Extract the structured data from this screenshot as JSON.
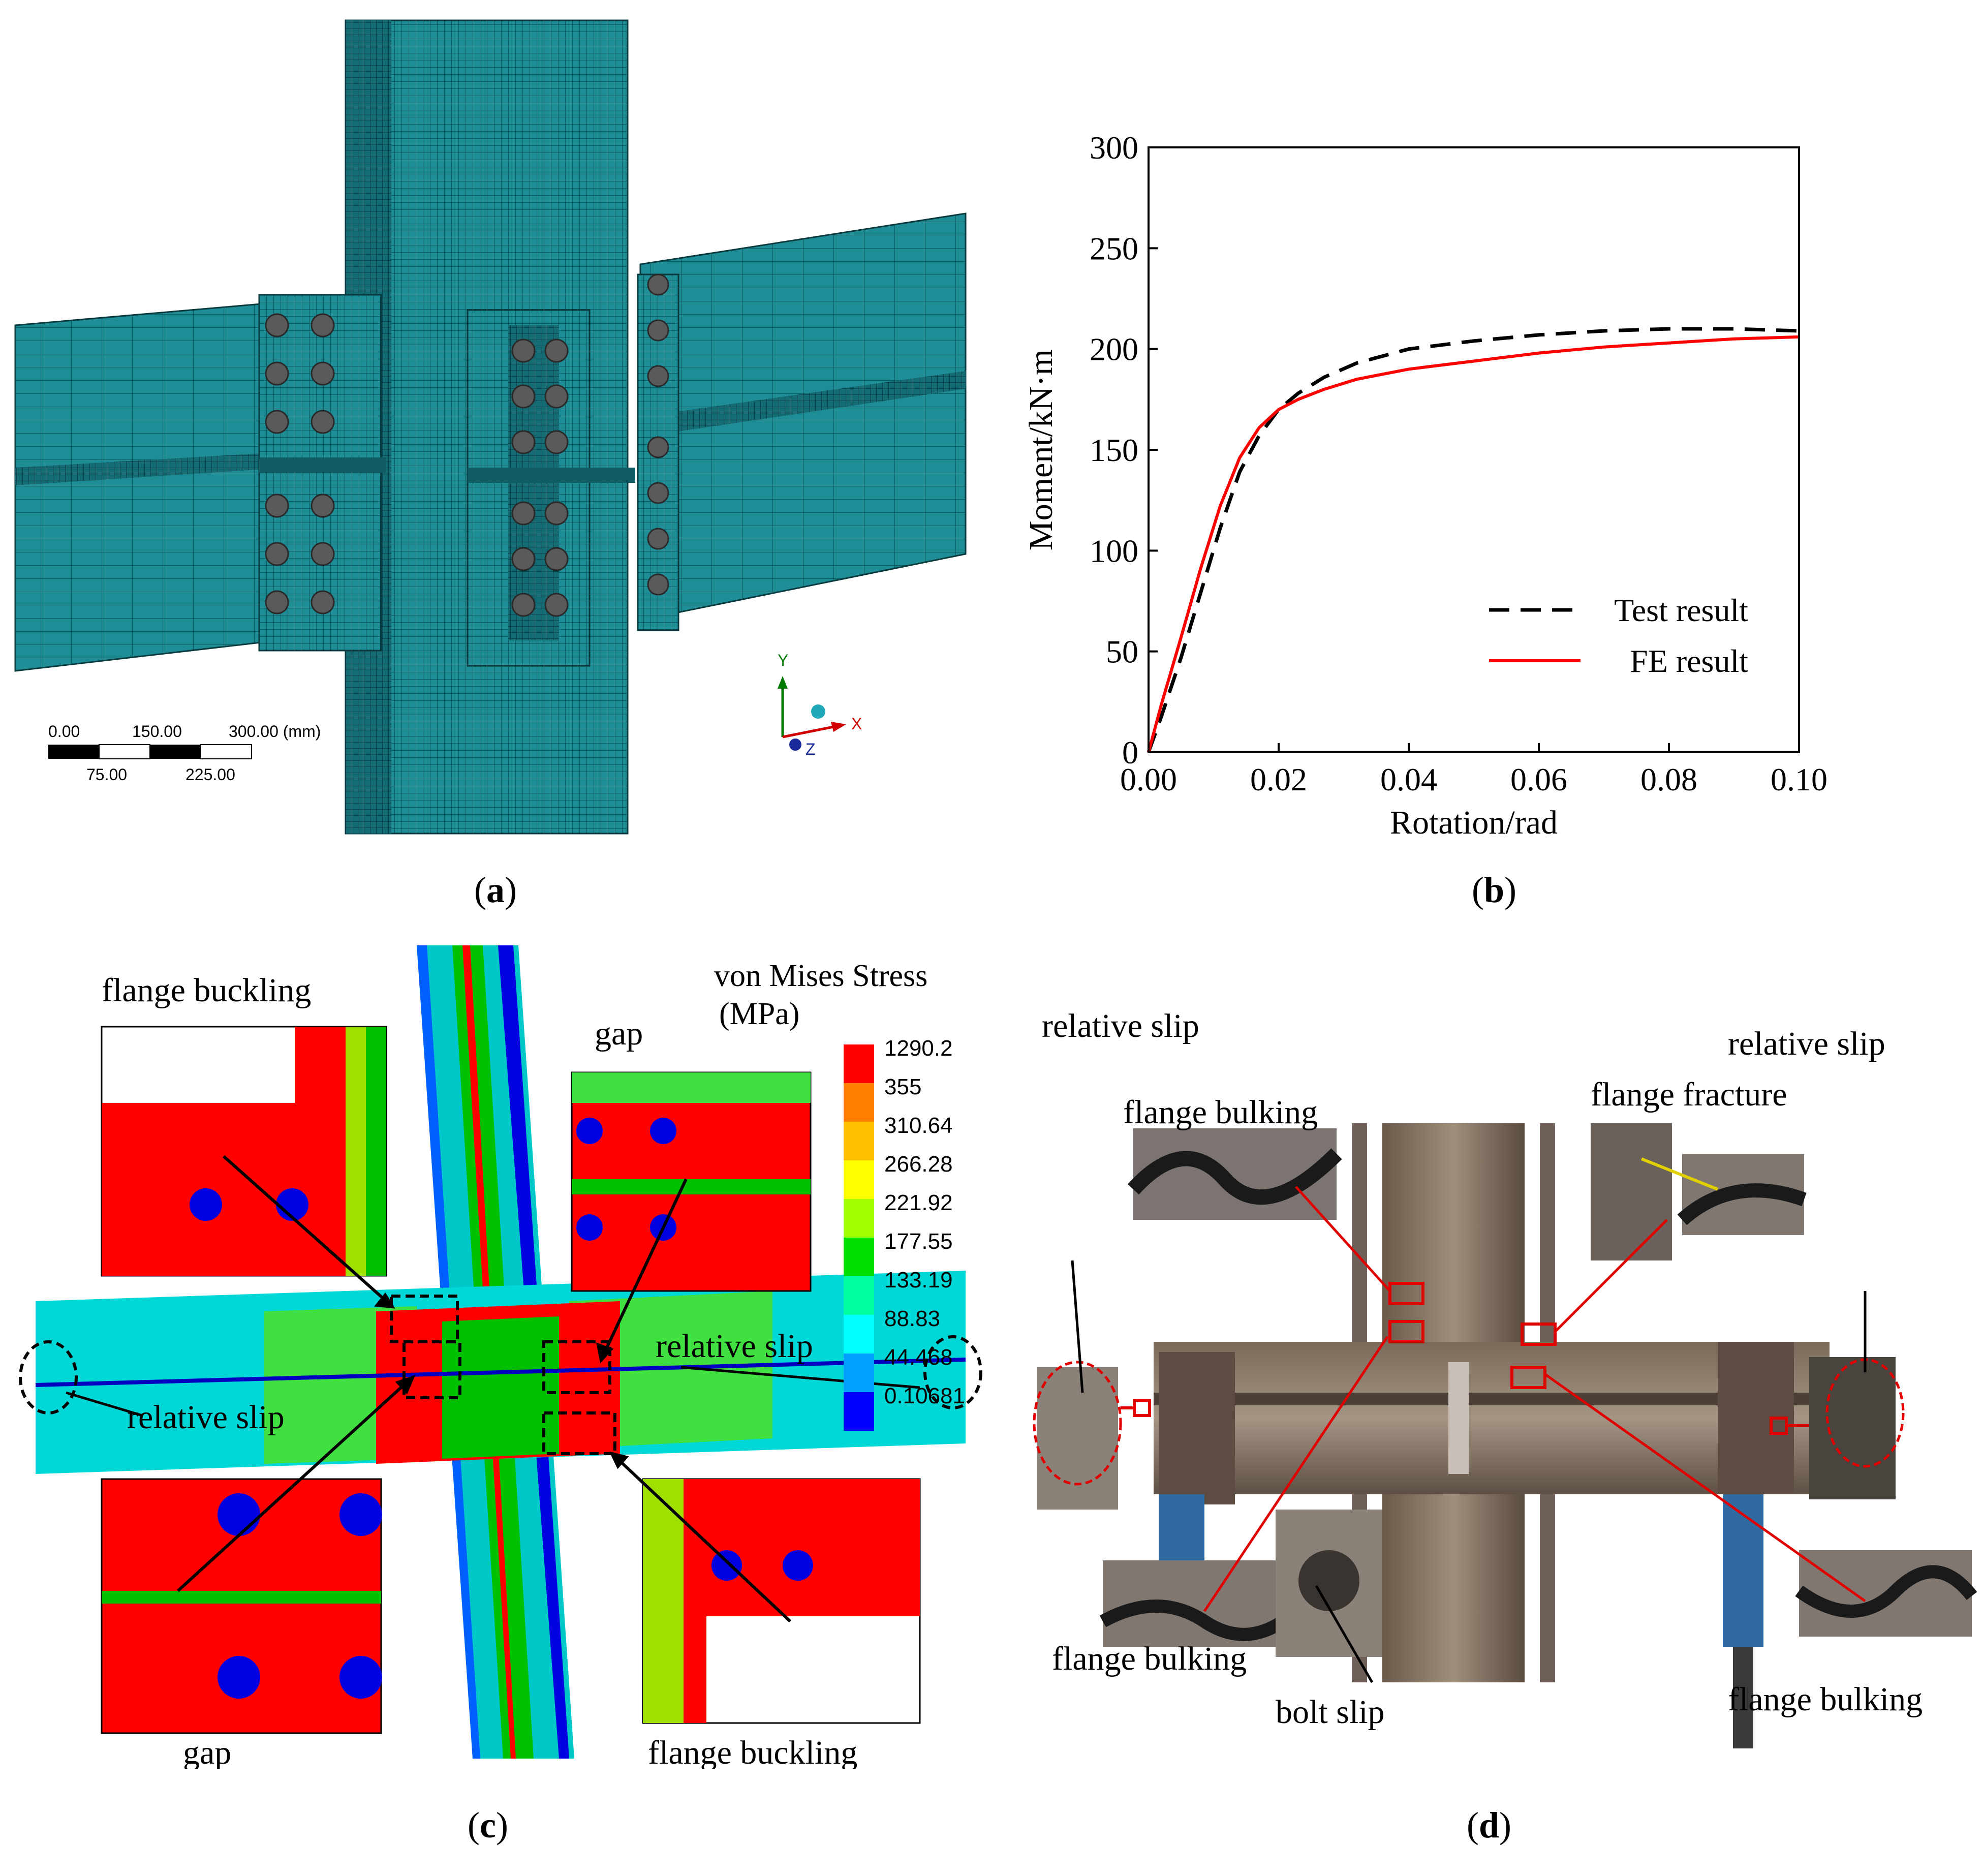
{
  "panels": {
    "a": {
      "caption_letter": "a",
      "scale_bar": {
        "top": [
          "0.00",
          "150.00",
          "300.00 (mm)"
        ],
        "bottom": [
          "75.00",
          "225.00"
        ]
      },
      "axes": {
        "y": "Y",
        "x": "X",
        "z": "Z"
      },
      "colors": {
        "mesh": "#1e8d96",
        "mesh_dark": "#0f5c63",
        "bolt": "#555555"
      }
    },
    "b": {
      "caption_letter": "b"
    },
    "c": {
      "caption_letter": "c",
      "legend_title": [
        "von Mises Stress",
        "(MPa)"
      ],
      "legend_values": [
        "1290.2",
        "355",
        "310.64",
        "266.28",
        "221.92",
        "177.55",
        "133.19",
        "88.83",
        "44.468",
        "0.10681"
      ],
      "legend_colors": [
        "#ff0000",
        "#ff7f00",
        "#ffc000",
        "#ffff00",
        "#a0ff00",
        "#00e000",
        "#00ffa0",
        "#00ffff",
        "#00a0ff",
        "#0000ff"
      ],
      "labels": {
        "flange_buckling_top": "flange buckling",
        "gap_top": "gap",
        "relative_slip_right": "relative slip",
        "relative_slip_left": "relative slip",
        "gap_bottom": "gap",
        "flange_buckling_bottom": "flange buckling"
      }
    },
    "d": {
      "caption_letter": "d",
      "labels": {
        "relative_slip_left": "relative slip",
        "flange_bulking_top": "flange bulking",
        "flange_fracture": "flange fracture",
        "relative_slip_right": "relative slip",
        "flange_bulking_bottom_left": "flange bulking",
        "bolt_slip": "bolt slip",
        "flange_bulking_bottom_right": "flange bulking"
      }
    }
  },
  "chart_data": {
    "type": "line",
    "xlabel": "Rotation/rad",
    "ylabel": "Moment/kN·m",
    "xlim": [
      0,
      0.1
    ],
    "ylim": [
      0,
      300
    ],
    "xticks": [
      "0.00",
      "0.02",
      "0.04",
      "0.06",
      "0.08",
      "0.10"
    ],
    "yticks": [
      "0",
      "50",
      "100",
      "150",
      "200",
      "250",
      "300"
    ],
    "legend_position": "lower-right",
    "series": [
      {
        "name": "Test result",
        "style": "dashed",
        "color": "#000000",
        "x": [
          0,
          0.002,
          0.005,
          0.008,
          0.011,
          0.014,
          0.017,
          0.02,
          0.023,
          0.027,
          0.032,
          0.04,
          0.05,
          0.06,
          0.07,
          0.08,
          0.09,
          0.1
        ],
        "y": [
          0,
          18,
          47,
          79,
          111,
          139,
          157,
          170,
          178,
          186,
          193,
          200,
          204,
          207,
          209,
          210,
          210,
          209
        ]
      },
      {
        "name": "FE result",
        "style": "solid",
        "color": "#ff0000",
        "x": [
          0,
          0.002,
          0.005,
          0.008,
          0.011,
          0.014,
          0.017,
          0.02,
          0.023,
          0.027,
          0.032,
          0.04,
          0.05,
          0.06,
          0.07,
          0.08,
          0.09,
          0.1
        ],
        "y": [
          0,
          24,
          57,
          91,
          122,
          146,
          161,
          170,
          175,
          180,
          185,
          190,
          194,
          198,
          201,
          203,
          205,
          206
        ]
      }
    ]
  }
}
